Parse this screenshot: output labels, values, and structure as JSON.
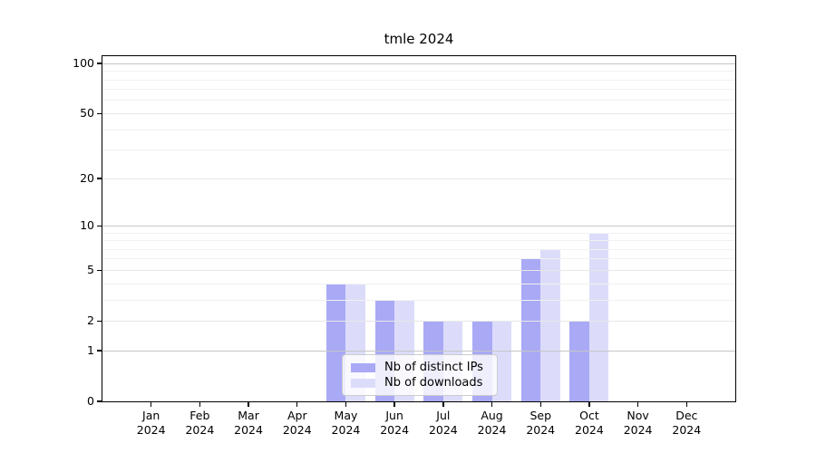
{
  "chart_data": {
    "type": "bar",
    "title": "tmle 2024",
    "x_categories": [
      "Jan",
      "Feb",
      "Mar",
      "Apr",
      "May",
      "Jun",
      "Jul",
      "Aug",
      "Sep",
      "Oct",
      "Nov",
      "Dec"
    ],
    "x_year_sublabel": "2024",
    "series": [
      {
        "name": "Nb of distinct IPs",
        "color": "#a9a9f6",
        "values": [
          0,
          0,
          0,
          0,
          4,
          3,
          2,
          2,
          6,
          2,
          0,
          0
        ]
      },
      {
        "name": "Nb of downloads",
        "color": "#dcdcfa",
        "values": [
          0,
          0,
          0,
          0,
          4,
          3,
          2,
          2,
          7,
          9,
          0,
          0
        ]
      }
    ],
    "y_axis": {
      "scale": "log1p",
      "tick_labels": [
        0,
        1,
        2,
        5,
        10,
        20,
        50,
        100
      ],
      "gridlines_major": [
        1,
        10,
        100
      ],
      "gridlines_mid": [
        2,
        5,
        20,
        50
      ],
      "gridlines_minor": [
        3,
        4,
        6,
        7,
        8,
        9,
        30,
        40,
        60,
        70,
        80,
        90
      ]
    },
    "legend": {
      "position": "lower-center"
    },
    "colors": {
      "grid_major": "#c6c6c6",
      "grid_mid": "#e7e7e7",
      "grid_minor": "#f1f1f1",
      "axis": "#000000",
      "legend_border": "#cccccc"
    }
  }
}
